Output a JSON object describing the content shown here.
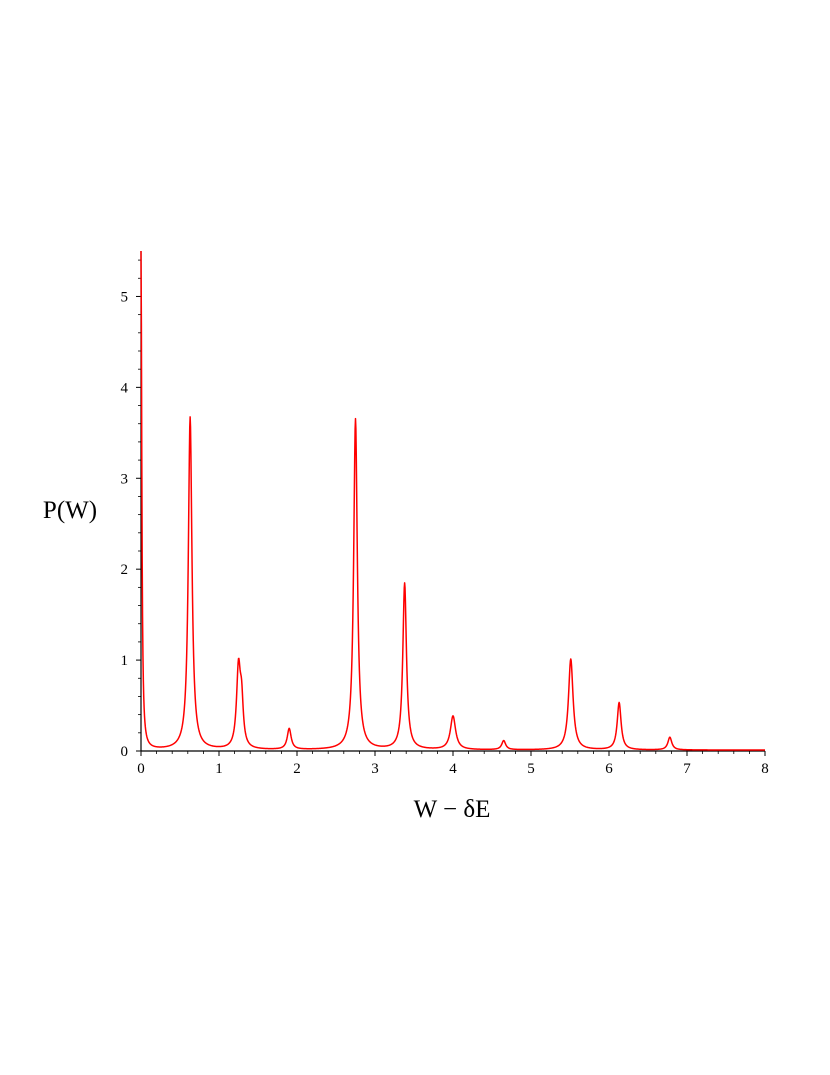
{
  "chart_data": {
    "type": "line",
    "title": "",
    "xlabel": "W − δE",
    "ylabel": "P(W)",
    "xlim": [
      0,
      8
    ],
    "ylim": [
      0,
      5.5
    ],
    "x_ticks": [
      0,
      1,
      2,
      3,
      4,
      5,
      6,
      7,
      8
    ],
    "y_ticks": [
      0,
      1,
      2,
      3,
      4,
      5
    ],
    "grid": false,
    "legend": "none",
    "line_color": "#ff0000",
    "baseline": 0.01,
    "peaks": [
      {
        "x": 0.0,
        "height": 5.5,
        "width": 0.012
      },
      {
        "x": 0.63,
        "height": 3.66,
        "width": 0.028
      },
      {
        "x": 1.25,
        "height": 0.87,
        "width": 0.03
      },
      {
        "x": 1.29,
        "height": 0.45,
        "width": 0.025
      },
      {
        "x": 1.9,
        "height": 0.23,
        "width": 0.03
      },
      {
        "x": 2.75,
        "height": 3.64,
        "width": 0.028
      },
      {
        "x": 3.38,
        "height": 1.83,
        "width": 0.028
      },
      {
        "x": 4.0,
        "height": 0.37,
        "width": 0.04
      },
      {
        "x": 4.65,
        "height": 0.1,
        "width": 0.03
      },
      {
        "x": 5.51,
        "height": 1.0,
        "width": 0.035
      },
      {
        "x": 6.13,
        "height": 0.52,
        "width": 0.03
      },
      {
        "x": 6.78,
        "height": 0.14,
        "width": 0.03
      }
    ]
  }
}
